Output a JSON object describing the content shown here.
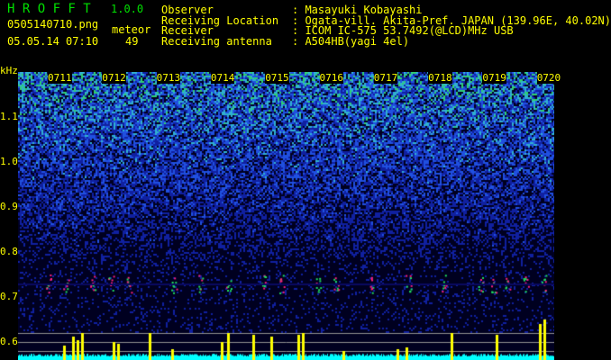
{
  "app": {
    "name": "H R O F F T",
    "version": "1.0.0"
  },
  "file": {
    "name": "0505140710.png",
    "datetime": "05.05.14 07:10"
  },
  "meteor": {
    "label": "meteor",
    "count": "49"
  },
  "info": [
    {
      "label": "Observer",
      "value": ": Masayuki Kobayashi"
    },
    {
      "label": "Receiving Location",
      "value": ": Ogata-vill. Akita-Pref. JAPAN (139.96E, 40.02N)"
    },
    {
      "label": "Receiver",
      "value": ": ICOM IC-575 53.7492(@LCD)MHz USB"
    },
    {
      "label": "Receiving antenna",
      "value": ": A504HB(yagi 4el)"
    }
  ],
  "axis": {
    "unit": "kHz",
    "y_ticks": [
      "1.1",
      "1.0",
      "0.9",
      "0.8",
      "0.7",
      "0.6"
    ],
    "time_ticks": [
      "0711",
      "0712",
      "0713",
      "0714",
      "0715",
      "0716",
      "0717",
      "0718",
      "0719",
      "0720"
    ]
  },
  "colors": {
    "text": "#ffff00",
    "title": "#00e000",
    "activity": "#ffff00",
    "baseline": "#00ffff"
  }
}
